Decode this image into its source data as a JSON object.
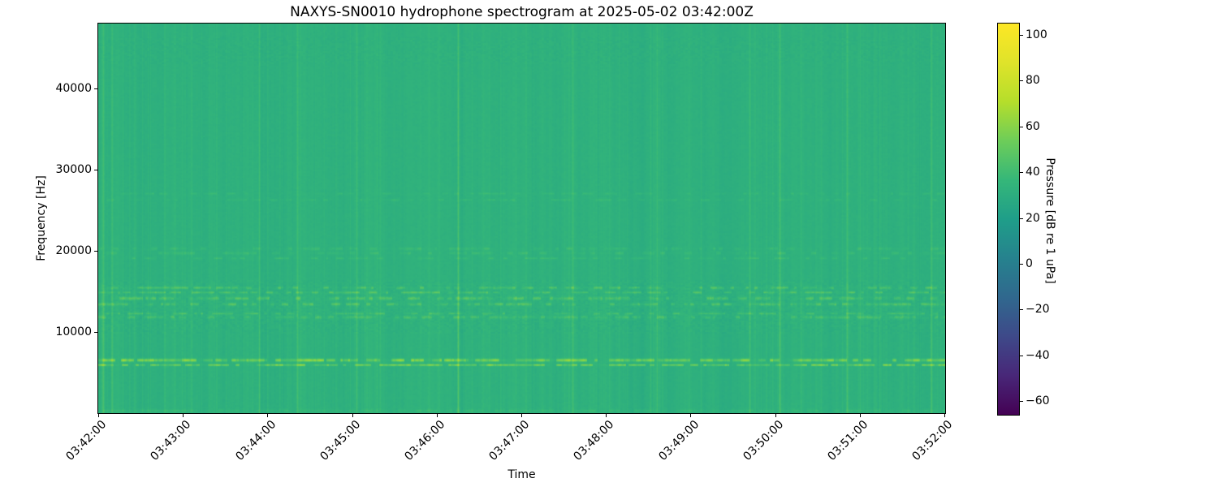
{
  "chart_data": {
    "type": "heatmap",
    "subtype": "spectrogram",
    "title": "NAXYS-SN0010 hydrophone spectrogram at 2025-05-02 03:42:00Z",
    "xlabel": "Time",
    "ylabel": "Frequency [Hz]",
    "x_tick_labels": [
      "03:42:00",
      "03:43:00",
      "03:44:00",
      "03:45:00",
      "03:46:00",
      "03:47:00",
      "03:48:00",
      "03:49:00",
      "03:50:00",
      "03:51:00",
      "03:52:00"
    ],
    "y_ticks_hz": [
      10000,
      20000,
      30000,
      40000
    ],
    "freq_range_hz": [
      0,
      48000
    ],
    "time_start": "03:42:00",
    "time_end": "03:52:00",
    "grid": false,
    "legend": null,
    "colormap": "viridis",
    "clim_db": [
      -66,
      105
    ],
    "colorbar": {
      "label": "Pressure [dB re 1 uPa]",
      "ticks": [
        100,
        80,
        60,
        40,
        20,
        0,
        -20,
        -40,
        -60
      ]
    },
    "content": {
      "background_level_db": 32,
      "fine_noise_db": 0.9,
      "mottled_regions": [
        {
          "freq_lo_hz": 10000,
          "freq_hi_hz": 16500,
          "noise_db": 2.0
        },
        {
          "freq_lo_hz": 43000,
          "freq_hi_hz": 46500,
          "noise_db": 1.6
        }
      ],
      "tonal_bands": [
        {
          "name": "strong 6 kHz dashed tonal",
          "freq_lo_hz": 5700,
          "freq_hi_hz": 6800,
          "rows": 2,
          "dash_peak_db": 34,
          "dash_fill": 0.75
        },
        {
          "name": "13-16 kHz dashed band",
          "freq_lo_hz": 13100,
          "freq_hi_hz": 15900,
          "rows": 4,
          "dash_peak_db": 17,
          "dash_fill": 0.55
        },
        {
          "name": "12 kHz dotted row",
          "freq_lo_hz": 11700,
          "freq_hi_hz": 12600,
          "rows": 2,
          "dash_peak_db": 13,
          "dash_fill": 0.5
        },
        {
          "name": "faint 19-20.5 kHz",
          "freq_lo_hz": 18900,
          "freq_hi_hz": 20600,
          "rows": 3,
          "dash_peak_db": 8,
          "dash_fill": 0.4
        },
        {
          "name": "very faint 26-27.5 kHz",
          "freq_lo_hz": 25800,
          "freq_hi_hz": 27600,
          "rows": 2,
          "dash_peak_db": 6,
          "dash_fill": 0.35
        },
        {
          "name": "low-frequency edge energy",
          "freq_lo_hz": 0,
          "freq_hi_hz": 600,
          "rows": 1,
          "dash_peak_db": 6,
          "dash_fill": 0.8
        }
      ],
      "broadband_clicks": {
        "minor_count": 150,
        "minor_boost_db": 3,
        "strong": [
          {
            "t_frac": 0.006,
            "db": 8
          },
          {
            "t_frac": 0.016,
            "db": 6
          },
          {
            "t_frac": 0.19,
            "db": 6
          },
          {
            "t_frac": 0.235,
            "db": 7
          },
          {
            "t_frac": 0.305,
            "db": 7
          },
          {
            "t_frac": 0.425,
            "db": 12
          },
          {
            "t_frac": 0.56,
            "db": 6
          },
          {
            "t_frac": 0.66,
            "db": 6
          },
          {
            "t_frac": 0.77,
            "db": 7
          },
          {
            "t_frac": 0.805,
            "db": 9
          },
          {
            "t_frac": 0.885,
            "db": 8
          },
          {
            "t_frac": 0.985,
            "db": 7
          }
        ]
      }
    }
  }
}
